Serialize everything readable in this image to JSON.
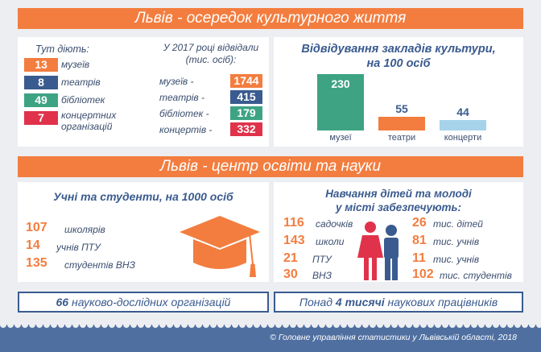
{
  "section1": {
    "banner": "Львів - осередок культурного життя",
    "operating_title": "Тут діють:",
    "operating": [
      {
        "count": "13",
        "label": "музеїв",
        "color": "#f37d3f"
      },
      {
        "count": "8",
        "label": "театрів",
        "color": "#3a5b8f"
      },
      {
        "count": "49",
        "label": "бібліотек",
        "color": "#3ea383"
      },
      {
        "count": "7",
        "label": "концертних організацій",
        "label_line1": "концертних",
        "label_line2": "організацій",
        "color": "#e0334b"
      }
    ],
    "visited_title_line1": "У 2017 році відвідали",
    "visited_title_line2": "(тис. осіб):",
    "visited": [
      {
        "label": "музеїв -",
        "value": "1744",
        "color": "#f37d3f"
      },
      {
        "label": "театрів -",
        "value": "415",
        "color": "#3a5b8f"
      },
      {
        "label": "бібліотек -",
        "value": "179",
        "color": "#3ea383"
      },
      {
        "label": "концертів -",
        "value": "332",
        "color": "#e0334b"
      }
    ]
  },
  "attendance_chart": {
    "title_line1": "Відвідування закладів культури,",
    "title_line2": "на 100 осіб",
    "chart_data": {
      "type": "bar",
      "categories": [
        "музеї",
        "театри",
        "концерти"
      ],
      "values": [
        230,
        55,
        44
      ],
      "colors": [
        "#3ea383",
        "#f37d3f",
        "#a7d3ea"
      ]
    }
  },
  "section2": {
    "banner": "Львів - центр освіти та науки",
    "students_title": "Учні та студенти, на 1000 осіб",
    "students": [
      {
        "value": "107",
        "label": "школярів"
      },
      {
        "value": "14",
        "label": "учнів ПТУ"
      },
      {
        "value": "135",
        "label": "студентів ВНЗ"
      }
    ],
    "provision_title_line1": "Навчання дітей та молоді",
    "provision_title_line2": "у місті забезпечують:",
    "institutions": [
      {
        "value": "116",
        "label": "садочків"
      },
      {
        "value": "143",
        "label": "школи"
      },
      {
        "value": "21",
        "label": "ПТУ"
      },
      {
        "value": "30",
        "label": "ВНЗ"
      }
    ],
    "enrolment": [
      {
        "value": "26",
        "label": "тис. дітей"
      },
      {
        "value": "81",
        "label": "тис. учнів"
      },
      {
        "value": "11",
        "label": "тис. учнів"
      },
      {
        "value": "102",
        "label": "тис. студентів"
      }
    ],
    "research_count": "66",
    "research_label": "науково-дослідних організацій",
    "workers_prefix": "Понад",
    "workers_count": "4 тисячі",
    "workers_label": "наукових працівників"
  },
  "footer": {
    "source": "Головне управління статистики у Львівській області, 2018"
  }
}
